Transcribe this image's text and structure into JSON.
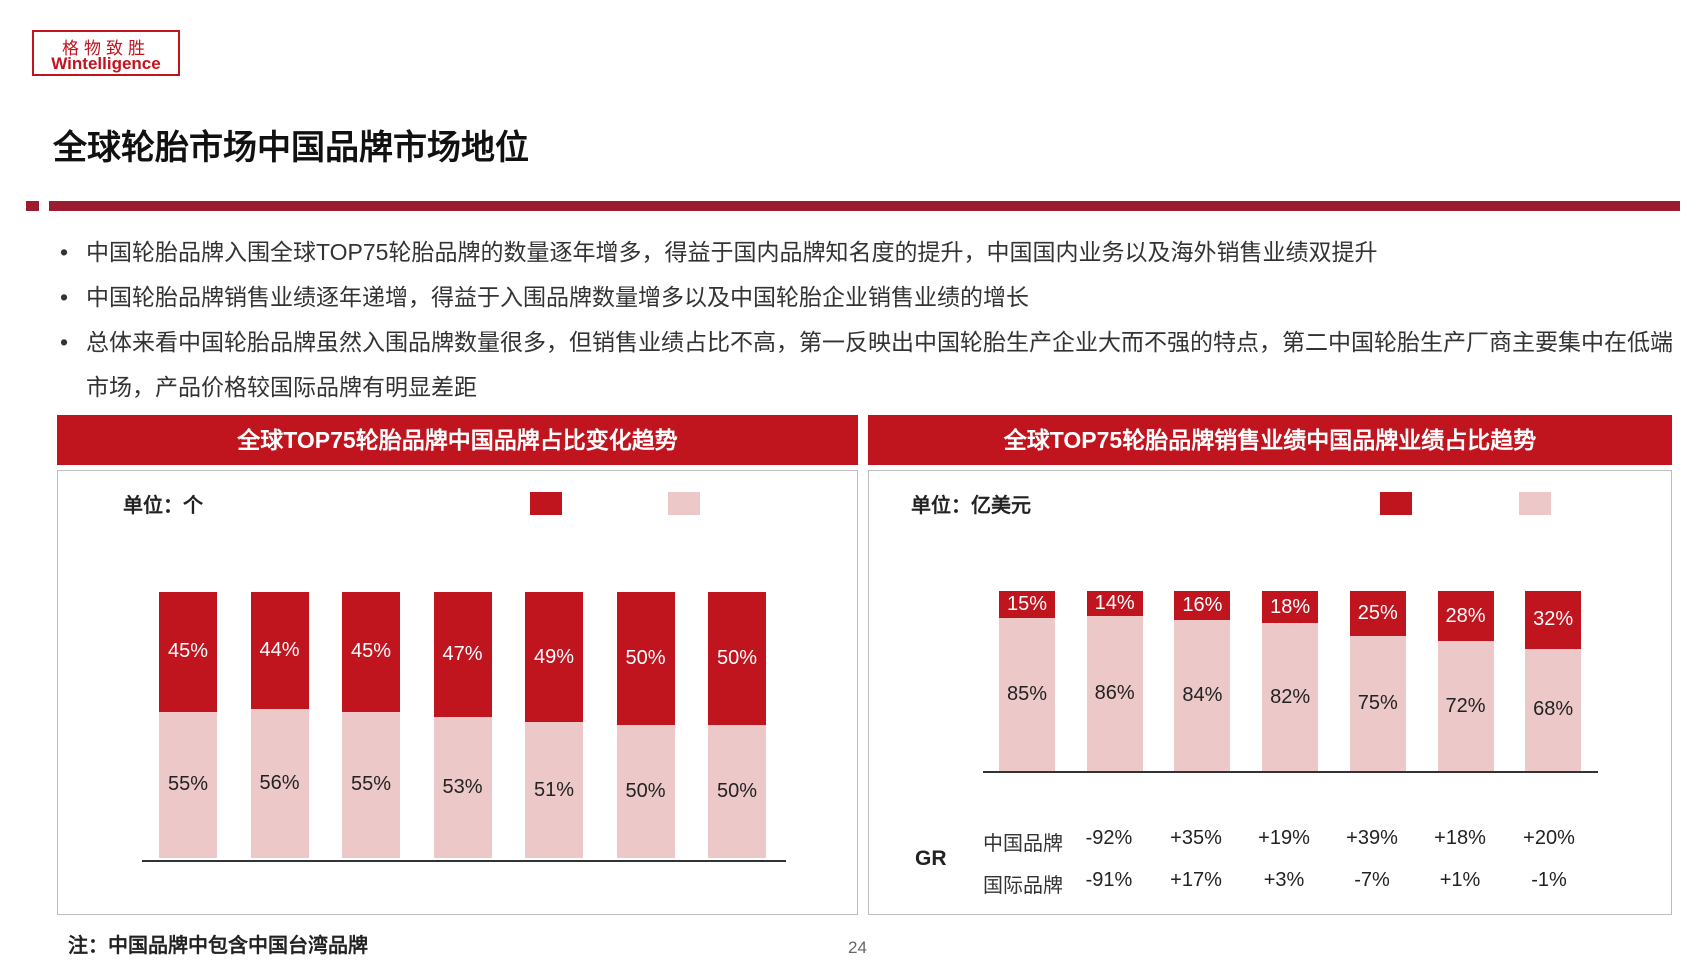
{
  "logo": {
    "cn": "格物致胜",
    "en": "Wintelligence"
  },
  "title": "全球轮胎市场中国品牌市场地位",
  "bullets": [
    "中国轮胎品牌入围全球TOP75轮胎品牌的数量逐年增多，得益于国内品牌知名度的提升，中国国内业务以及海外销售业绩双提升",
    "中国轮胎品牌销售业绩逐年递增，得益于入围品牌数量增多以及中国轮胎企业销售业绩的增长",
    "总体来看中国轮胎品牌虽然入围品牌数量很多，但销售业绩占比不高，第一反映出中国轮胎生产企业大而不强的特点，第二中国轮胎生产厂商主要集中在低端市场，产品价格较国际品牌有明显差距"
  ],
  "bullet_char": "•",
  "colors": {
    "brand": "#c0141f",
    "china": "#c0141f",
    "international": "#ecc8c8",
    "rule": "#9b1b30"
  },
  "chart_data": [
    {
      "type": "bar",
      "stacked": true,
      "title": "全球TOP75轮胎品牌中国品牌占比变化趋势",
      "unit": "单位：个",
      "categories": [
        "",
        "",
        "",
        "",
        "",
        "",
        ""
      ],
      "series": [
        {
          "values": [
            45,
            44,
            45,
            47,
            49,
            50,
            50
          ],
          "labels": [
            "45%",
            "44%",
            "45%",
            "47%",
            "49%",
            "50%",
            "50%"
          ],
          "color": "#c0141f"
        },
        {
          "values": [
            55,
            56,
            55,
            53,
            51,
            50,
            50
          ],
          "labels": [
            "55%",
            "56%",
            "55%",
            "53%",
            "51%",
            "50%",
            "50%"
          ],
          "color": "#ecc8c8"
        }
      ],
      "ylim": [
        0,
        100
      ]
    },
    {
      "type": "bar",
      "stacked": true,
      "title": "全球TOP75轮胎品牌销售业绩中国品牌业绩占比趋势",
      "unit": "单位：亿美元",
      "categories": [
        "",
        "",
        "",
        "",
        "",
        "",
        ""
      ],
      "series": [
        {
          "values": [
            15,
            14,
            16,
            18,
            25,
            28,
            32
          ],
          "labels": [
            "15%",
            "14%",
            "16%",
            "18%",
            "25%",
            "28%",
            "32%"
          ],
          "color": "#c0141f"
        },
        {
          "values": [
            85,
            86,
            84,
            82,
            75,
            72,
            68
          ],
          "labels": [
            "85%",
            "86%",
            "84%",
            "82%",
            "75%",
            "72%",
            "68%"
          ],
          "color": "#ecc8c8"
        }
      ],
      "ylim": [
        0,
        100
      ],
      "growth_rates": {
        "label": "GR",
        "rows": [
          {
            "name": "中国品牌",
            "values": [
              "-92%",
              "+35%",
              "+19%",
              "+39%",
              "+18%",
              "+20%"
            ]
          },
          {
            "name": "国际品牌",
            "values": [
              "-91%",
              "+17%",
              "+3%",
              "-7%",
              "+1%",
              "-1%"
            ]
          }
        ]
      }
    }
  ],
  "note": "注：中国品牌中包含中国台湾品牌",
  "page_number": "24"
}
